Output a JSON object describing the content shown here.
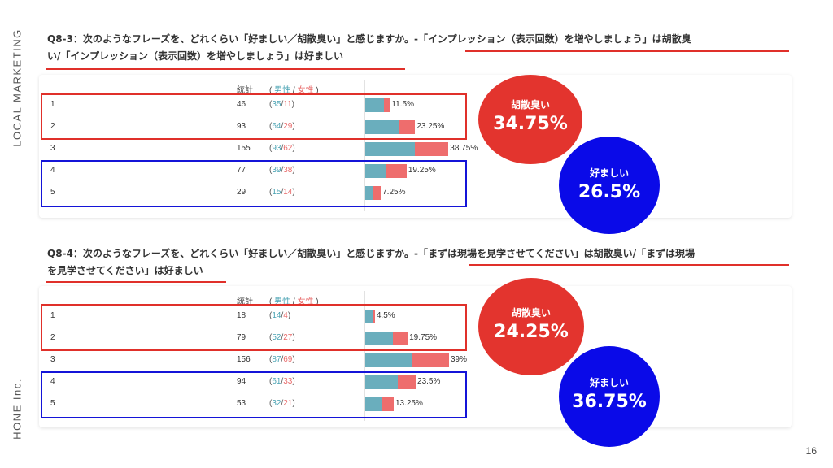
{
  "sidebar": {
    "top_text": "LOCAL MARKETING",
    "bottom_text": "HONE Inc."
  },
  "page_number": "16",
  "header": {
    "total_label": "統計",
    "open_paren": "(",
    "male_label": "男性",
    "slash": "/",
    "female_label": "女性",
    "close_paren": ")"
  },
  "colors": {
    "male": "#6aaebd",
    "female": "#ee6d6d",
    "accent_red": "#e3342e",
    "accent_blue": "#0a0ae8"
  },
  "questions": [
    {
      "title_line1": "Q8-3：次のようなフレーズを、どれくらい「好ましい／胡散臭い」と感じますか。-「インプレッション（表示回数）を増やしましょう」は胡散臭",
      "title_line2": "い/「インプレッション（表示回数）を増やしましょう」は好ましい",
      "rows": [
        {
          "category": "1",
          "total": "46",
          "male": "35",
          "female": "11",
          "percent": "11.5%",
          "male_n": 35,
          "female_n": 11
        },
        {
          "category": "2",
          "total": "93",
          "male": "64",
          "female": "29",
          "percent": "23.25%",
          "male_n": 64,
          "female_n": 29
        },
        {
          "category": "3",
          "total": "155",
          "male": "93",
          "female": "62",
          "percent": "38.75%",
          "male_n": 93,
          "female_n": 62
        },
        {
          "category": "4",
          "total": "77",
          "male": "39",
          "female": "38",
          "percent": "19.25%",
          "male_n": 39,
          "female_n": 38
        },
        {
          "category": "5",
          "total": "29",
          "male": "15",
          "female": "14",
          "percent": "7.25%",
          "male_n": 15,
          "female_n": 14
        }
      ],
      "summary_negative": {
        "label": "胡散臭い",
        "value": "34.75%"
      },
      "summary_positive": {
        "label": "好ましい",
        "value": "26.5%"
      }
    },
    {
      "title_line1": "Q8-4：次のようなフレーズを、どれくらい「好ましい／胡散臭い」と感じますか。-「まずは現場を見学させてください」は胡散臭い/「まずは現場",
      "title_line2": "を見学させてください」は好ましい",
      "rows": [
        {
          "category": "1",
          "total": "18",
          "male": "14",
          "female": "4",
          "percent": "4.5%",
          "male_n": 14,
          "female_n": 4
        },
        {
          "category": "2",
          "total": "79",
          "male": "52",
          "female": "27",
          "percent": "19.75%",
          "male_n": 52,
          "female_n": 27
        },
        {
          "category": "3",
          "total": "156",
          "male": "87",
          "female": "69",
          "percent": "39%",
          "male_n": 87,
          "female_n": 69
        },
        {
          "category": "4",
          "total": "94",
          "male": "61",
          "female": "33",
          "percent": "23.5%",
          "male_n": 61,
          "female_n": 33
        },
        {
          "category": "5",
          "total": "53",
          "male": "32",
          "female": "21",
          "percent": "13.25%",
          "male_n": 32,
          "female_n": 21
        }
      ],
      "summary_negative": {
        "label": "胡散臭い",
        "value": "24.25%"
      },
      "summary_positive": {
        "label": "好ましい",
        "value": "36.75%"
      }
    }
  ]
}
